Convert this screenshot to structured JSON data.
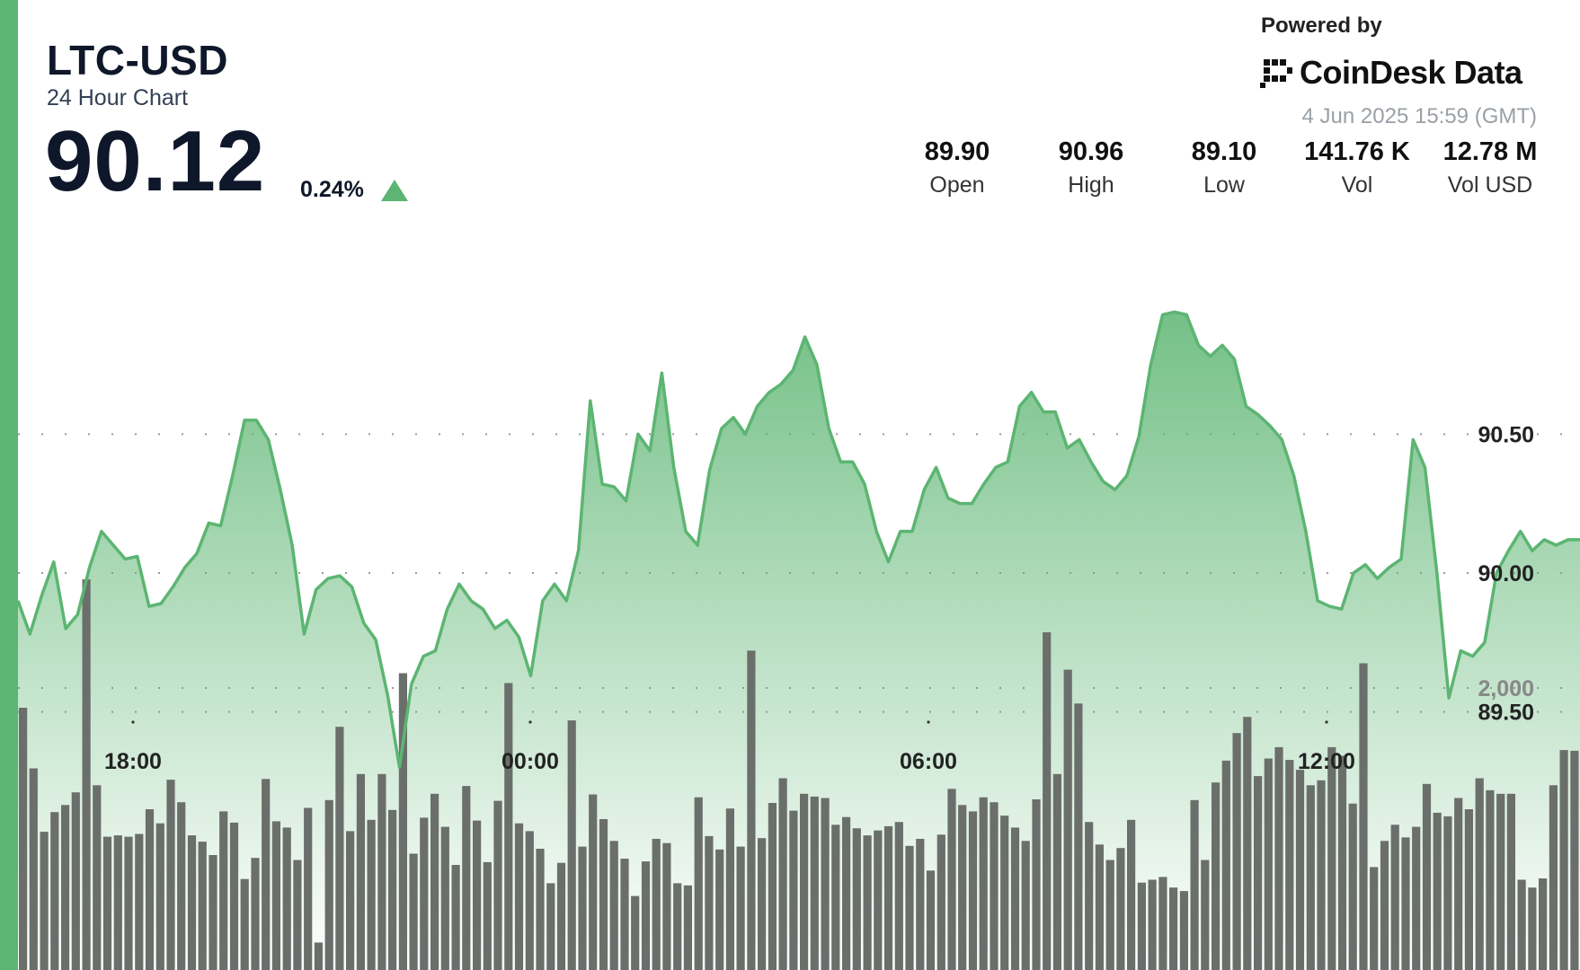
{
  "header": {
    "ticker": "LTC-USD",
    "subtitle": "24 Hour Chart",
    "price": "90.12",
    "change_pct": "0.24%",
    "change_direction_icon": "triangle-up-icon",
    "powered_by": "Powered by",
    "brand": "CoinDesk Data",
    "timestamp": "4 Jun 2025 15:59 (GMT)"
  },
  "stats": [
    {
      "value": "89.90",
      "label": "Open"
    },
    {
      "value": "90.96",
      "label": "High"
    },
    {
      "value": "89.10",
      "label": "Low"
    },
    {
      "value": "141.76 K",
      "label": "Vol"
    },
    {
      "value": "12.78 M",
      "label": "Vol USD"
    }
  ],
  "colors": {
    "accent": "#5cb572",
    "line": "#5cb572",
    "area_top": "#5cb572",
    "volume_bar": "#6b6f6b",
    "text": "#0f172a"
  },
  "chart_data": {
    "type": "area",
    "price": {
      "y_ticks": [
        89.5,
        90.0,
        90.5
      ],
      "y_tick_labels": [
        "89.50",
        "90.00",
        "90.50"
      ],
      "ylim": [
        88.7,
        91.4
      ],
      "values": [
        89.9,
        89.78,
        89.92,
        90.04,
        89.8,
        89.85,
        90.02,
        90.15,
        90.1,
        90.05,
        90.06,
        89.88,
        89.89,
        89.95,
        90.02,
        90.07,
        90.18,
        90.17,
        90.35,
        90.55,
        90.55,
        90.48,
        90.3,
        90.1,
        89.78,
        89.94,
        89.98,
        89.99,
        89.95,
        89.82,
        89.76,
        89.56,
        89.3,
        89.6,
        89.7,
        89.72,
        89.87,
        89.96,
        89.9,
        89.87,
        89.8,
        89.83,
        89.77,
        89.63,
        89.9,
        89.96,
        89.9,
        90.08,
        90.62,
        90.32,
        90.31,
        90.26,
        90.5,
        90.44,
        90.72,
        90.38,
        90.15,
        90.1,
        90.37,
        90.52,
        90.56,
        90.5,
        90.6,
        90.65,
        90.68,
        90.73,
        90.85,
        90.75,
        90.52,
        90.4,
        90.4,
        90.32,
        90.15,
        90.04,
        90.15,
        90.15,
        90.3,
        90.38,
        90.27,
        90.25,
        90.25,
        90.32,
        90.38,
        90.4,
        90.6,
        90.65,
        90.58,
        90.58,
        90.45,
        90.48,
        90.4,
        90.33,
        90.3,
        90.35,
        90.49,
        90.75,
        90.93,
        90.94,
        90.93,
        90.82,
        90.78,
        90.82,
        90.77,
        90.6,
        90.57,
        90.53,
        90.48,
        90.35,
        90.15,
        89.9,
        89.88,
        89.87,
        90.0,
        90.03,
        89.98,
        90.02,
        90.05,
        90.48,
        90.38,
        90.0,
        89.55,
        89.72,
        89.7,
        89.75,
        90.0,
        90.08,
        90.15,
        90.08,
        90.12,
        90.1,
        90.12,
        90.12
      ]
    },
    "volume": {
      "y_ticks": [
        2000
      ],
      "y_tick_labels": [
        "2,000"
      ],
      "ylim": [
        0,
        2930
      ],
      "values": [
        1860,
        1430,
        980,
        1120,
        1170,
        1260,
        2770,
        1310,
        945,
        955,
        945,
        965,
        1140,
        1040,
        1350,
        1190,
        955,
        910,
        815,
        1125,
        1045,
        645,
        795,
        1355,
        1055,
        1010,
        780,
        1150,
        195,
        1205,
        1725,
        985,
        1390,
        1065,
        1390,
        1135,
        2105,
        825,
        1080,
        1250,
        1015,
        745,
        1305,
        1060,
        765,
        1200,
        2035,
        1040,
        985,
        860,
        615,
        760,
        1770,
        875,
        1245,
        1070,
        915,
        790,
        525,
        770,
        930,
        900,
        615,
        600,
        1225,
        950,
        855,
        1145,
        875,
        2265,
        935,
        1185,
        1360,
        1130,
        1250,
        1230,
        1220,
        1030,
        1085,
        1005,
        955,
        990,
        1020,
        1050,
        880,
        930,
        705,
        960,
        1285,
        1170,
        1125,
        1225,
        1190,
        1095,
        1010,
        915,
        1210,
        2395,
        1390,
        2130,
        1890,
        1050,
        890,
        780,
        865,
        1065,
        620,
        640,
        660,
        585,
        560,
        1205,
        780,
        1330,
        1485,
        1680,
        1795,
        1375,
        1500,
        1580,
        1490,
        1420,
        1310,
        1345,
        1580,
        1520,
        1180,
        2175,
        730,
        915,
        1030,
        940,
        1015,
        1320,
        1115,
        1090,
        1220,
        1140,
        1360,
        1275,
        1250,
        1250,
        640,
        585,
        650,
        1310,
        1560,
        1555
      ]
    },
    "x_tick_labels": [
      "18:00",
      "00:00",
      "06:00",
      "12:00"
    ]
  }
}
